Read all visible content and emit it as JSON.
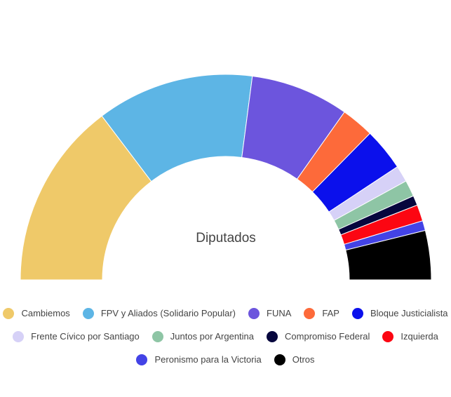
{
  "chart_data": {
    "type": "pie",
    "subtype": "semicircle-donut",
    "center_label": "Diputados",
    "legend_position": "bottom",
    "series": [
      {
        "name": "Cambiemos",
        "value": 57,
        "color": "#efc969"
      },
      {
        "name": "FPV y Aliados (Solidario Popular)",
        "value": 48,
        "color": "#5db5e5"
      },
      {
        "name": "FUNA",
        "value": 30,
        "color": "#6c55dd"
      },
      {
        "name": "FAP",
        "value": 10,
        "color": "#fd6a3a"
      },
      {
        "name": "Bloque Justicialista",
        "value": 13,
        "color": "#0b10ec"
      },
      {
        "name": "Frente Cívico por Santiago",
        "value": 5,
        "color": "#d6d1f7"
      },
      {
        "name": "Juntos por Argentina",
        "value": 5,
        "color": "#8ec5a5"
      },
      {
        "name": "Compromiso Federal",
        "value": 3,
        "color": "#06063d"
      },
      {
        "name": "Izquierda",
        "value": 5,
        "color": "#fc0612"
      },
      {
        "name": "Peronismo para la Victoria",
        "value": 3,
        "color": "#4343e6"
      },
      {
        "name": "Otros",
        "value": 15,
        "color": "#000000"
      }
    ]
  }
}
